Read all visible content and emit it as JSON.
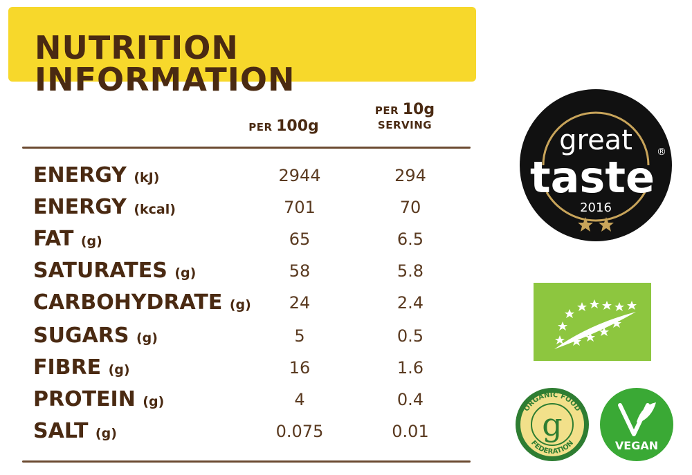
{
  "title": "NUTRITION INFORMATION",
  "columns": {
    "per100_small": "PER",
    "per100_big": "100g",
    "serving_small": "PER",
    "serving_big": "10g",
    "serving_word": "SERVING"
  },
  "rows": [
    {
      "name": "ENERGY",
      "unit": "(kJ)",
      "per100": "2944",
      "serving": "294"
    },
    {
      "name": "ENERGY",
      "unit": "(kcal)",
      "per100": "701",
      "serving": "70"
    },
    {
      "name": "FAT",
      "unit": "(g)",
      "per100": "65",
      "serving": "6.5"
    },
    {
      "name": "SATURATES",
      "unit": "(g)",
      "per100": "58",
      "serving": "5.8"
    },
    {
      "name": "CARBOHYDRATE",
      "unit": "(g)",
      "per100": "24",
      "serving": "2.4"
    },
    {
      "name": "SUGARS",
      "unit": "(g)",
      "per100": "5",
      "serving": "0.5"
    },
    {
      "name": "FIBRE",
      "unit": "(g)",
      "per100": "16",
      "serving": "1.6"
    },
    {
      "name": "PROTEIN",
      "unit": "(g)",
      "per100": "4",
      "serving": "0.4"
    },
    {
      "name": "SALT",
      "unit": "(g)",
      "per100": "0.075",
      "serving": "0.01"
    }
  ],
  "badges": {
    "great_taste": {
      "line1": "great",
      "line2": "taste",
      "year": "2016",
      "reg": "®"
    },
    "organic_food": {
      "top": "ORGANIC FOOD",
      "bottom": "FEDERATION",
      "letter": "g"
    },
    "vegan": {
      "label": "VEGAN"
    }
  },
  "colors": {
    "banner": "#f7d82b",
    "text": "#4a2a12",
    "eu_leaf": "#8dc63f",
    "vegan_green": "#3aa935",
    "gold": "#c8a45a"
  }
}
